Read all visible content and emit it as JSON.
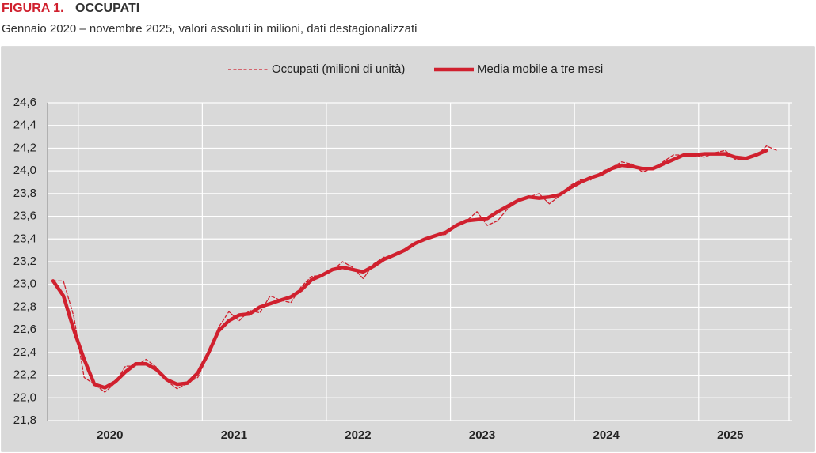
{
  "chart_data": {
    "type": "line",
    "figure_label": "FIGURA 1.",
    "title": "OCCUPATI",
    "subtitle": "Gennaio 2020 – novembre 2025, valori assoluti in milioni, dati destagionalizzati",
    "years": [
      "2020",
      "2021",
      "2022",
      "2023",
      "2024",
      "2025"
    ],
    "ylim": [
      21.8,
      24.6
    ],
    "yticks": [
      {
        "value": 21.8,
        "label": "21,8"
      },
      {
        "value": 22.0,
        "label": "22,0"
      },
      {
        "value": 22.2,
        "label": "22,2"
      },
      {
        "value": 22.4,
        "label": "22,4"
      },
      {
        "value": 22.6,
        "label": "22,6"
      },
      {
        "value": 22.8,
        "label": "22,8"
      },
      {
        "value": 23.0,
        "label": "23,0"
      },
      {
        "value": 23.2,
        "label": "23,2"
      },
      {
        "value": 23.4,
        "label": "23,4"
      },
      {
        "value": 23.6,
        "label": "23,6"
      },
      {
        "value": 23.8,
        "label": "23,8"
      },
      {
        "value": 24.0,
        "label": "24,0"
      },
      {
        "value": 24.2,
        "label": "24,2"
      },
      {
        "value": 24.4,
        "label": "24,4"
      },
      {
        "value": 24.6,
        "label": "24,6"
      }
    ],
    "grid": true,
    "series": [
      {
        "name": "Occupati (milioni di unità)",
        "color": "#d0202e",
        "dashed": true,
        "values": [
          23.03,
          23.03,
          22.72,
          22.18,
          22.12,
          22.05,
          22.13,
          22.28,
          22.28,
          22.34,
          22.27,
          22.15,
          22.08,
          22.13,
          22.18,
          22.38,
          22.62,
          22.76,
          22.68,
          22.77,
          22.75,
          22.9,
          22.86,
          22.84,
          22.98,
          23.07,
          23.08,
          23.12,
          23.2,
          23.15,
          23.05,
          23.18,
          23.24,
          23.25,
          23.3,
          23.36,
          23.41,
          23.43,
          23.44,
          23.52,
          23.56,
          23.64,
          23.52,
          23.56,
          23.67,
          23.73,
          23.77,
          23.8,
          23.71,
          23.78,
          23.87,
          23.92,
          23.92,
          23.99,
          24.03,
          24.08,
          24.06,
          23.99,
          24.02,
          24.08,
          24.14,
          24.14,
          24.14,
          24.12,
          24.16,
          24.18,
          24.1,
          24.1,
          24.13,
          24.22,
          24.18
        ]
      },
      {
        "name": "Media mobile a tre mesi",
        "color": "#d0202e",
        "dashed": false,
        "values": [
          23.03,
          22.9,
          22.6,
          22.34,
          22.12,
          22.09,
          22.14,
          22.23,
          22.3,
          22.3,
          22.25,
          22.16,
          22.12,
          22.13,
          22.22,
          22.39,
          22.59,
          22.68,
          22.73,
          22.74,
          22.8,
          22.83,
          22.86,
          22.89,
          22.95,
          23.04,
          23.08,
          23.13,
          23.15,
          23.13,
          23.11,
          23.16,
          23.22,
          23.26,
          23.3,
          23.36,
          23.4,
          23.43,
          23.46,
          23.52,
          23.56,
          23.57,
          23.58,
          23.64,
          23.69,
          23.74,
          23.77,
          23.76,
          23.77,
          23.79,
          23.85,
          23.9,
          23.94,
          23.97,
          24.02,
          24.05,
          24.04,
          24.02,
          24.02,
          24.06,
          24.1,
          24.14,
          24.14,
          24.15,
          24.15,
          24.15,
          24.12,
          24.11,
          24.14,
          24.18,
          null
        ]
      }
    ]
  }
}
